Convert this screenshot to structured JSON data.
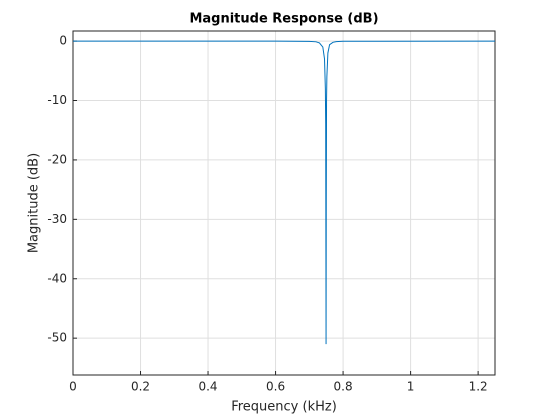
{
  "chart_data": {
    "type": "line",
    "title": "Magnitude Response (dB)",
    "x_label": "Frequency (kHz)",
    "y_label": "Magnitude (dB)",
    "x": [
      0,
      0.6,
      0.7,
      0.72,
      0.73,
      0.74,
      0.745,
      0.7475,
      0.7485,
      0.7496,
      0.7502,
      0.751,
      0.752,
      0.755,
      0.76,
      0.77,
      0.78,
      0.8,
      1.25
    ],
    "series": [
      {
        "name": "Magnitude",
        "color": "#0072bd",
        "values": [
          0,
          0,
          -0.05,
          -0.12,
          -0.3,
          -1.0,
          -3,
          -8,
          -14,
          -51,
          -27,
          -10,
          -6,
          -2,
          -0.6,
          -0.2,
          -0.08,
          -0.03,
          0
        ]
      }
    ],
    "xlim": [
      0,
      1.25
    ],
    "ylim": [
      -56.2,
      1.7
    ],
    "xticks": [
      0,
      0.2,
      0.4,
      0.6,
      0.8,
      1,
      1.2
    ],
    "yticks": [
      0,
      -10,
      -20,
      -30,
      -40,
      -50
    ],
    "grid": true
  }
}
